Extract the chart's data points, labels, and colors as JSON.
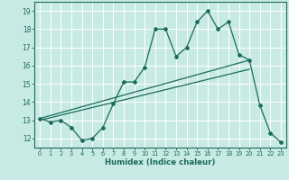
{
  "title": "",
  "xlabel": "Humidex (Indice chaleur)",
  "xlim": [
    -0.5,
    23.5
  ],
  "ylim": [
    11.5,
    19.5
  ],
  "xticks": [
    0,
    1,
    2,
    3,
    4,
    5,
    6,
    7,
    8,
    9,
    10,
    11,
    12,
    13,
    14,
    15,
    16,
    17,
    18,
    19,
    20,
    21,
    22,
    23
  ],
  "yticks": [
    12,
    13,
    14,
    15,
    16,
    17,
    18,
    19
  ],
  "bg_color": "#c8eae4",
  "line_color": "#1a6b5a",
  "grid_color": "#ffffff",
  "line1_x": [
    0,
    1,
    2,
    3,
    4,
    5,
    6,
    7,
    8,
    9,
    10,
    11,
    12,
    13,
    14,
    15,
    16,
    17,
    18,
    19,
    20,
    21,
    22,
    23
  ],
  "line1_y": [
    13.1,
    12.9,
    13.0,
    12.6,
    11.9,
    12.0,
    12.6,
    13.9,
    15.1,
    15.1,
    15.9,
    18.0,
    18.0,
    16.5,
    17.0,
    18.4,
    19.0,
    18.0,
    18.4,
    16.6,
    16.3,
    13.8,
    12.3,
    11.8
  ],
  "line2_x": [
    0,
    20
  ],
  "line2_y": [
    13.1,
    16.3
  ],
  "line3_x": [
    0,
    20
  ],
  "line3_y": [
    13.0,
    15.8
  ]
}
